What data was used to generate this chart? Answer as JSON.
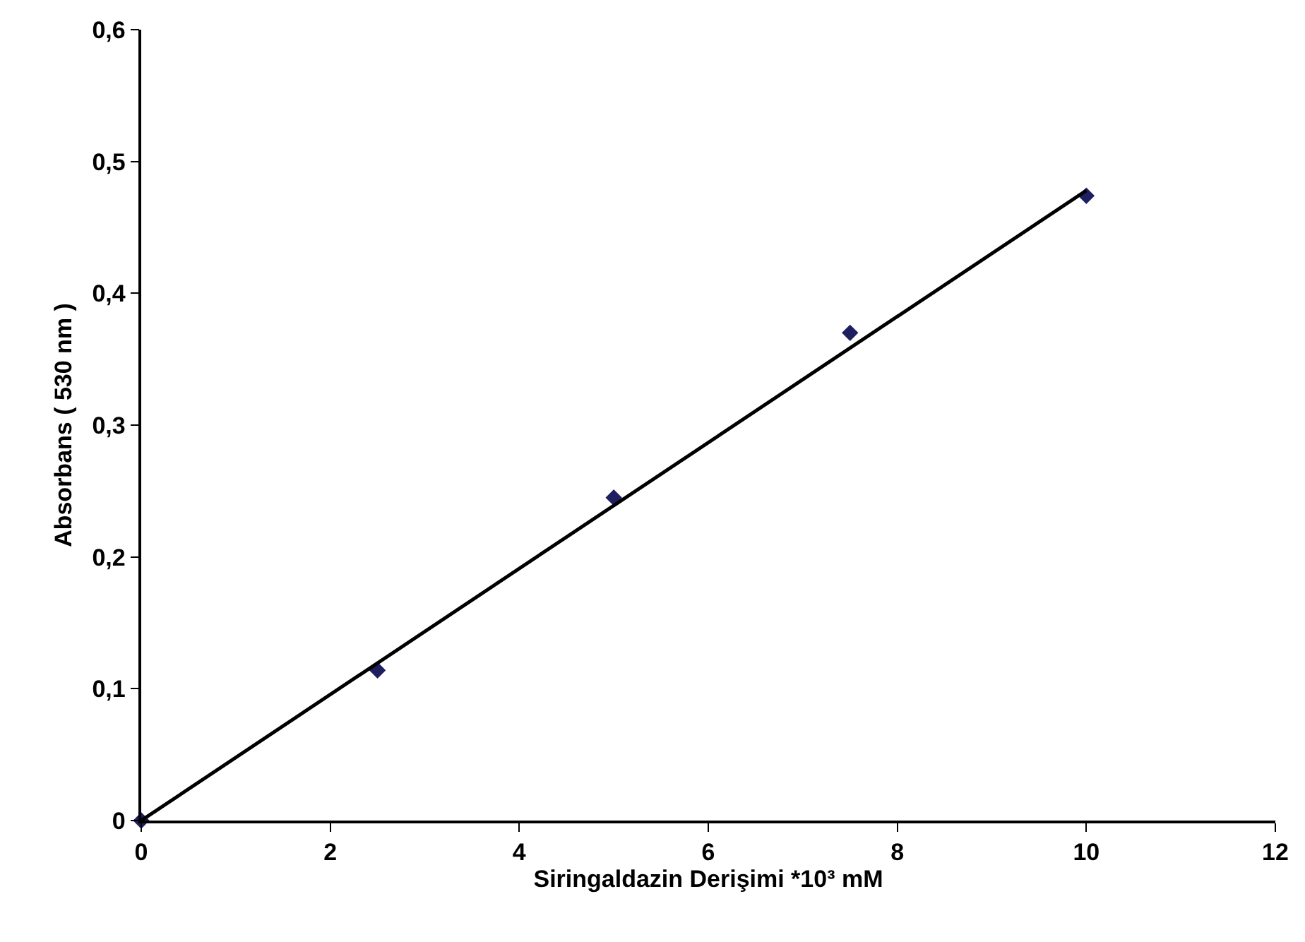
{
  "chart_data": {
    "type": "scatter",
    "xlabel": "Siringaldazin Derişimi *10³ mM",
    "ylabel": "Absorbans ( 530 nm )",
    "x": [
      0,
      2.5,
      5,
      7.5,
      10
    ],
    "series": [
      {
        "color": "#1f1f5f",
        "marker": "diamond",
        "values": [
          0,
          0.114,
          0.245,
          0.37,
          0.474
        ]
      },
      {
        "type": "line",
        "color": "#000000",
        "marker": "none",
        "line_style": "solid",
        "x": [
          0,
          10
        ],
        "values": [
          0,
          0.478
        ]
      }
    ],
    "xlim": [
      0,
      12
    ],
    "xticks": [
      0,
      2,
      4,
      6,
      8,
      10,
      12
    ],
    "ylim": [
      0,
      0.6
    ],
    "yticks": [
      0,
      {
        "value": 0.1,
        "label": "0,1"
      },
      {
        "value": 0.2,
        "label": "0,2"
      },
      {
        "value": 0.3,
        "label": "0,3"
      },
      {
        "value": 0.4,
        "label": "0,4"
      },
      {
        "value": 0.5,
        "label": "0,5"
      },
      {
        "value": 0.6,
        "label": "0,6"
      }
    ]
  }
}
